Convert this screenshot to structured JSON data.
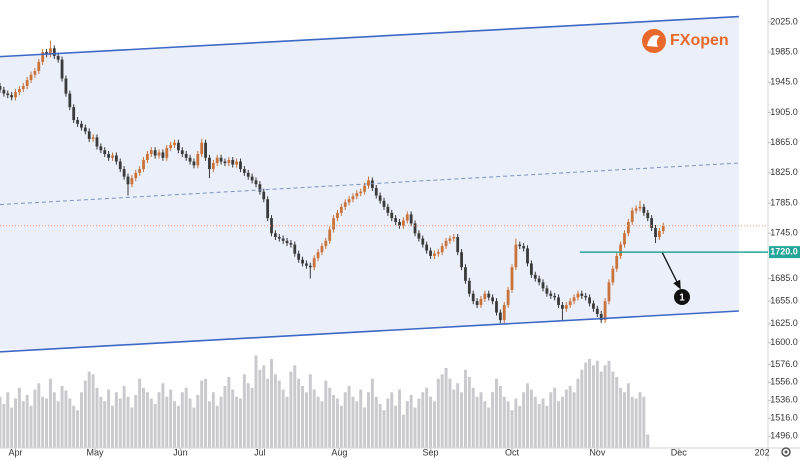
{
  "chart_data": {
    "type": "candlestick",
    "logo": "FXopen",
    "annotation": "1",
    "up_color": "#c9733a",
    "down_color": "#3a3a3a",
    "volume_color": "#c9c9ce",
    "ylim": [
      1593,
      2054
    ],
    "yticks": [
      {
        "value": 2025,
        "label": "2025.0"
      },
      {
        "value": 1985,
        "label": "1985.0"
      },
      {
        "value": 1945,
        "label": "1945.0"
      },
      {
        "value": 1905,
        "label": "1905.0"
      },
      {
        "value": 1865,
        "label": "1865.0"
      },
      {
        "value": 1825,
        "label": "1825.0"
      },
      {
        "value": 1785,
        "label": "1785.0"
      },
      {
        "value": 1745,
        "label": "1745.0"
      },
      {
        "value": 1685,
        "label": "1685.0"
      },
      {
        "value": 1655,
        "label": "1655.0"
      },
      {
        "value": 1625,
        "label": "1625.0"
      },
      {
        "value": 1600,
        "label": "1600.0"
      }
    ],
    "y2lim": [
      1483,
      1592
    ],
    "y2ticks": [
      {
        "value": 1576,
        "label": "1576.0"
      },
      {
        "value": 1556,
        "label": "1556.0"
      },
      {
        "value": 1536,
        "label": "1536.0"
      },
      {
        "value": 1516,
        "label": "1516.0"
      },
      {
        "value": 1496,
        "label": "1496.0"
      }
    ],
    "xlim": [
      0,
      198
    ],
    "xticks": [
      {
        "value": 4,
        "label": "Apr"
      },
      {
        "value": 24.5,
        "label": "May"
      },
      {
        "value": 46.5,
        "label": "Jun"
      },
      {
        "value": 67,
        "label": "Jul"
      },
      {
        "value": 87.5,
        "label": "Aug"
      },
      {
        "value": 111,
        "label": "Sep"
      },
      {
        "value": 132,
        "label": "Oct"
      },
      {
        "value": 154,
        "label": "Nov"
      },
      {
        "value": 175,
        "label": "Dec"
      },
      {
        "value": 196.5,
        "label": "202"
      }
    ],
    "channel": {
      "color": "#3d68c6",
      "fill": "#eaeff9",
      "upper": {
        "x": [
          0,
          190.5
        ],
        "y": [
          1979,
          2032
        ]
      },
      "middle": {
        "x": [
          0,
          190.5
        ],
        "y": [
          1783,
          1838
        ]
      },
      "lower": {
        "x": [
          0,
          190.5
        ],
        "y": [
          1588,
          1642
        ]
      }
    },
    "level": {
      "value": 1720,
      "label": "1720.0",
      "x_start": 149.5,
      "color": "#26a69a"
    },
    "ohlc": [
      [
        1940,
        1944,
        1931,
        1935
      ],
      [
        1935,
        1939,
        1926,
        1930
      ],
      [
        1930,
        1934,
        1924,
        1928
      ],
      [
        1928,
        1932,
        1921,
        1925
      ],
      [
        1925,
        1936,
        1921,
        1932
      ],
      [
        1932,
        1940,
        1928,
        1936
      ],
      [
        1936,
        1944,
        1932,
        1940
      ],
      [
        1940,
        1952,
        1936,
        1948
      ],
      [
        1948,
        1959,
        1944,
        1955
      ],
      [
        1955,
        1964,
        1951,
        1960
      ],
      [
        1960,
        1976,
        1956,
        1972
      ],
      [
        1972,
        1989,
        1968,
        1985
      ],
      [
        1985,
        1989,
        1978,
        1982
      ],
      [
        1982,
        2000,
        1978,
        1990
      ],
      [
        1990,
        1994,
        1976,
        1980
      ],
      [
        1980,
        1984,
        1971,
        1975
      ],
      [
        1975,
        1979,
        1946,
        1950
      ],
      [
        1950,
        1954,
        1926,
        1930
      ],
      [
        1930,
        1934,
        1908,
        1912
      ],
      [
        1912,
        1916,
        1891,
        1895
      ],
      [
        1895,
        1899,
        1886,
        1890
      ],
      [
        1890,
        1894,
        1881,
        1885
      ],
      [
        1885,
        1889,
        1876,
        1880
      ],
      [
        1880,
        1884,
        1866,
        1870
      ],
      [
        1870,
        1876,
        1866,
        1872
      ],
      [
        1872,
        1876,
        1856,
        1860
      ],
      [
        1860,
        1864,
        1851,
        1855
      ],
      [
        1855,
        1859,
        1846,
        1850
      ],
      [
        1850,
        1854,
        1841,
        1845
      ],
      [
        1845,
        1852,
        1841,
        1848
      ],
      [
        1848,
        1852,
        1836,
        1840
      ],
      [
        1840,
        1844,
        1826,
        1830
      ],
      [
        1830,
        1834,
        1816,
        1820
      ],
      [
        1820,
        1824,
        1795,
        1810
      ],
      [
        1810,
        1822,
        1806,
        1818
      ],
      [
        1818,
        1829,
        1814,
        1825
      ],
      [
        1825,
        1834,
        1821,
        1830
      ],
      [
        1830,
        1846,
        1826,
        1842
      ],
      [
        1842,
        1854,
        1838,
        1850
      ],
      [
        1850,
        1859,
        1846,
        1855
      ],
      [
        1855,
        1859,
        1844,
        1848
      ],
      [
        1848,
        1856,
        1844,
        1852
      ],
      [
        1852,
        1856,
        1841,
        1845
      ],
      [
        1845,
        1862,
        1841,
        1858
      ],
      [
        1858,
        1866,
        1854,
        1862
      ],
      [
        1862,
        1869,
        1858,
        1865
      ],
      [
        1865,
        1869,
        1851,
        1855
      ],
      [
        1855,
        1859,
        1846,
        1850
      ],
      [
        1850,
        1854,
        1841,
        1845
      ],
      [
        1845,
        1849,
        1836,
        1840
      ],
      [
        1840,
        1844,
        1831,
        1835
      ],
      [
        1835,
        1854,
        1831,
        1850
      ],
      [
        1850,
        1870,
        1846,
        1865
      ],
      [
        1865,
        1869,
        1841,
        1845
      ],
      [
        1845,
        1849,
        1818,
        1830
      ],
      [
        1830,
        1842,
        1826,
        1838
      ],
      [
        1838,
        1849,
        1834,
        1845
      ],
      [
        1845,
        1849,
        1836,
        1840
      ],
      [
        1840,
        1844,
        1834,
        1838
      ],
      [
        1838,
        1846,
        1834,
        1842
      ],
      [
        1842,
        1846,
        1832,
        1836
      ],
      [
        1836,
        1844,
        1832,
        1840
      ],
      [
        1840,
        1844,
        1826,
        1830
      ],
      [
        1830,
        1834,
        1821,
        1825
      ],
      [
        1825,
        1829,
        1816,
        1820
      ],
      [
        1820,
        1824,
        1811,
        1815
      ],
      [
        1815,
        1819,
        1806,
        1810
      ],
      [
        1810,
        1814,
        1796,
        1800
      ],
      [
        1800,
        1804,
        1786,
        1790
      ],
      [
        1790,
        1794,
        1761,
        1765
      ],
      [
        1765,
        1769,
        1741,
        1745
      ],
      [
        1745,
        1749,
        1736,
        1740
      ],
      [
        1740,
        1744,
        1734,
        1738
      ],
      [
        1738,
        1742,
        1731,
        1735
      ],
      [
        1735,
        1739,
        1728,
        1732
      ],
      [
        1732,
        1736,
        1726,
        1730
      ],
      [
        1730,
        1734,
        1714,
        1718
      ],
      [
        1718,
        1722,
        1706,
        1710
      ],
      [
        1710,
        1714,
        1701,
        1705
      ],
      [
        1705,
        1709,
        1698,
        1702
      ],
      [
        1702,
        1706,
        1685,
        1700
      ],
      [
        1700,
        1716,
        1696,
        1712
      ],
      [
        1712,
        1724,
        1708,
        1720
      ],
      [
        1720,
        1732,
        1716,
        1728
      ],
      [
        1728,
        1739,
        1724,
        1735
      ],
      [
        1735,
        1754,
        1731,
        1750
      ],
      [
        1750,
        1769,
        1746,
        1765
      ],
      [
        1765,
        1776,
        1761,
        1772
      ],
      [
        1772,
        1784,
        1768,
        1780
      ],
      [
        1780,
        1790,
        1776,
        1786
      ],
      [
        1786,
        1794,
        1782,
        1790
      ],
      [
        1790,
        1798,
        1786,
        1794
      ],
      [
        1794,
        1802,
        1790,
        1798
      ],
      [
        1798,
        1804,
        1794,
        1800
      ],
      [
        1800,
        1812,
        1796,
        1808
      ],
      [
        1808,
        1820,
        1804,
        1815
      ],
      [
        1815,
        1819,
        1801,
        1805
      ],
      [
        1805,
        1809,
        1791,
        1795
      ],
      [
        1795,
        1799,
        1784,
        1788
      ],
      [
        1788,
        1792,
        1776,
        1780
      ],
      [
        1780,
        1784,
        1768,
        1772
      ],
      [
        1772,
        1776,
        1761,
        1765
      ],
      [
        1765,
        1769,
        1756,
        1760
      ],
      [
        1760,
        1764,
        1751,
        1755
      ],
      [
        1755,
        1766,
        1751,
        1762
      ],
      [
        1762,
        1774,
        1758,
        1770
      ],
      [
        1770,
        1774,
        1754,
        1758
      ],
      [
        1758,
        1762,
        1741,
        1745
      ],
      [
        1745,
        1749,
        1734,
        1738
      ],
      [
        1738,
        1742,
        1726,
        1730
      ],
      [
        1730,
        1734,
        1718,
        1722
      ],
      [
        1722,
        1726,
        1711,
        1715
      ],
      [
        1715,
        1722,
        1711,
        1718
      ],
      [
        1718,
        1724,
        1714,
        1720
      ],
      [
        1720,
        1732,
        1716,
        1728
      ],
      [
        1728,
        1739,
        1724,
        1735
      ],
      [
        1735,
        1742,
        1731,
        1738
      ],
      [
        1738,
        1744,
        1734,
        1740
      ],
      [
        1740,
        1744,
        1716,
        1720
      ],
      [
        1720,
        1724,
        1696,
        1700
      ],
      [
        1700,
        1704,
        1678,
        1682
      ],
      [
        1682,
        1686,
        1661,
        1665
      ],
      [
        1665,
        1669,
        1651,
        1655
      ],
      [
        1655,
        1659,
        1646,
        1650
      ],
      [
        1650,
        1662,
        1646,
        1658
      ],
      [
        1658,
        1669,
        1654,
        1665
      ],
      [
        1665,
        1669,
        1656,
        1660
      ],
      [
        1660,
        1664,
        1651,
        1655
      ],
      [
        1655,
        1659,
        1636,
        1640
      ],
      [
        1640,
        1644,
        1626,
        1630
      ],
      [
        1630,
        1654,
        1626,
        1650
      ],
      [
        1650,
        1674,
        1646,
        1670
      ],
      [
        1670,
        1704,
        1666,
        1700
      ],
      [
        1700,
        1738,
        1696,
        1730
      ],
      [
        1730,
        1734,
        1724,
        1728
      ],
      [
        1728,
        1732,
        1721,
        1725
      ],
      [
        1725,
        1729,
        1701,
        1705
      ],
      [
        1705,
        1709,
        1686,
        1690
      ],
      [
        1690,
        1694,
        1681,
        1685
      ],
      [
        1685,
        1689,
        1676,
        1680
      ],
      [
        1680,
        1684,
        1668,
        1672
      ],
      [
        1672,
        1676,
        1661,
        1665
      ],
      [
        1665,
        1669,
        1658,
        1662
      ],
      [
        1662,
        1666,
        1656,
        1660
      ],
      [
        1660,
        1664,
        1646,
        1650
      ],
      [
        1650,
        1654,
        1630,
        1645
      ],
      [
        1645,
        1654,
        1641,
        1650
      ],
      [
        1650,
        1659,
        1646,
        1655
      ],
      [
        1655,
        1664,
        1651,
        1660
      ],
      [
        1660,
        1669,
        1656,
        1665
      ],
      [
        1665,
        1669,
        1658,
        1662
      ],
      [
        1662,
        1666,
        1656,
        1660
      ],
      [
        1660,
        1664,
        1648,
        1652
      ],
      [
        1652,
        1656,
        1641,
        1645
      ],
      [
        1645,
        1649,
        1634,
        1638
      ],
      [
        1638,
        1642,
        1626,
        1630
      ],
      [
        1630,
        1659,
        1626,
        1655
      ],
      [
        1655,
        1684,
        1651,
        1680
      ],
      [
        1680,
        1702,
        1676,
        1698
      ],
      [
        1698,
        1719,
        1694,
        1715
      ],
      [
        1715,
        1734,
        1711,
        1730
      ],
      [
        1730,
        1749,
        1726,
        1745
      ],
      [
        1745,
        1764,
        1741,
        1760
      ],
      [
        1760,
        1779,
        1756,
        1775
      ],
      [
        1775,
        1782,
        1771,
        1778
      ],
      [
        1778,
        1788,
        1774,
        1780
      ],
      [
        1780,
        1784,
        1768,
        1772
      ],
      [
        1772,
        1776,
        1761,
        1765
      ],
      [
        1765,
        1769,
        1748,
        1752
      ],
      [
        1752,
        1756,
        1732,
        1740
      ],
      [
        1740,
        1752,
        1736,
        1748
      ],
      [
        1748,
        1759,
        1744,
        1755
      ]
    ],
    "volume": [
      1540,
      1532,
      1545,
      1528,
      1538,
      1550,
      1535,
      1542,
      1530,
      1548,
      1555,
      1540,
      1538,
      1560,
      1545,
      1535,
      1552,
      1547,
      1538,
      1530,
      1525,
      1545,
      1558,
      1568,
      1565,
      1550,
      1540,
      1535,
      1548,
      1530,
      1545,
      1538,
      1552,
      1540,
      1528,
      1542,
      1560,
      1550,
      1545,
      1538,
      1532,
      1545,
      1555,
      1540,
      1548,
      1535,
      1530,
      1545,
      1550,
      1538,
      1528,
      1542,
      1558,
      1560,
      1535,
      1545,
      1530,
      1540,
      1552,
      1562,
      1548,
      1540,
      1538,
      1565,
      1555,
      1550,
      1586,
      1570,
      1575,
      1560,
      1582,
      1565,
      1558,
      1548,
      1540,
      1568,
      1575,
      1560,
      1552,
      1545,
      1565,
      1548,
      1540,
      1535,
      1558,
      1550,
      1542,
      1538,
      1530,
      1545,
      1552,
      1540,
      1535,
      1548,
      1528,
      1545,
      1560,
      1540,
      1532,
      1525,
      1538,
      1545,
      1530,
      1548,
      1520,
      1535,
      1542,
      1528,
      1538,
      1545,
      1550,
      1540,
      1535,
      1560,
      1565,
      1572,
      1560,
      1548,
      1555,
      1545,
      1570,
      1562,
      1550,
      1540,
      1545,
      1535,
      1528,
      1545,
      1560,
      1552,
      1540,
      1535,
      1525,
      1538,
      1530,
      1545,
      1555,
      1548,
      1540,
      1532,
      1538,
      1530,
      1545,
      1550,
      1535,
      1540,
      1548,
      1552,
      1545,
      1560,
      1570,
      1578,
      1582,
      1575,
      1580,
      1568,
      1575,
      1580,
      1568,
      1562,
      1550,
      1545,
      1555,
      1540,
      1538,
      1545,
      1540,
      1498
    ]
  }
}
